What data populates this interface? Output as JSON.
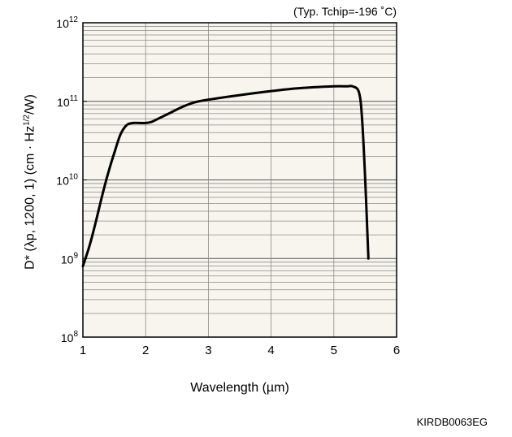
{
  "chart_data": {
    "type": "line",
    "annotation": "(Typ. Tchip=-196 ˚C)",
    "xlabel": "Wavelength (µm)",
    "ylabel": {
      "prefix": "D* (λp, 1200, 1) (cm · Hz",
      "sup": "1/2",
      "suffix": "/W)"
    },
    "xlim": [
      1,
      6
    ],
    "ylim": [
      100000000,
      1000000000000
    ],
    "yscale": "log",
    "grid": true,
    "x_ticks": [
      "1",
      "2",
      "3",
      "4",
      "5",
      "6"
    ],
    "y_ticks": [
      {
        "base": "10",
        "exp": "8"
      },
      {
        "base": "10",
        "exp": "9"
      },
      {
        "base": "10",
        "exp": "10"
      },
      {
        "base": "10",
        "exp": "11"
      },
      {
        "base": "10",
        "exp": "12"
      }
    ],
    "series": [
      {
        "x": [
          1.0,
          1.1,
          1.2,
          1.3,
          1.4,
          1.5,
          1.6,
          1.7,
          1.8,
          1.9,
          2.0,
          2.1,
          2.2,
          2.4,
          2.6,
          2.8,
          3.0,
          3.5,
          4.0,
          4.5,
          5.0,
          5.2,
          5.3,
          5.4,
          5.45,
          5.5,
          5.55
        ],
        "y": [
          800000000,
          1400000000,
          2800000000,
          6000000000,
          12000000000,
          22000000000,
          38000000000,
          50000000000,
          53000000000,
          53000000000,
          53000000000,
          55000000000,
          60000000000,
          72000000000,
          86000000000,
          98000000000,
          105000000000,
          120000000000,
          135000000000,
          148000000000,
          155000000000,
          155000000000,
          155000000000,
          130000000000,
          60000000000,
          10000000000,
          1000000000
        ]
      }
    ]
  },
  "footer": {
    "code": "KIRDB0063EG"
  }
}
